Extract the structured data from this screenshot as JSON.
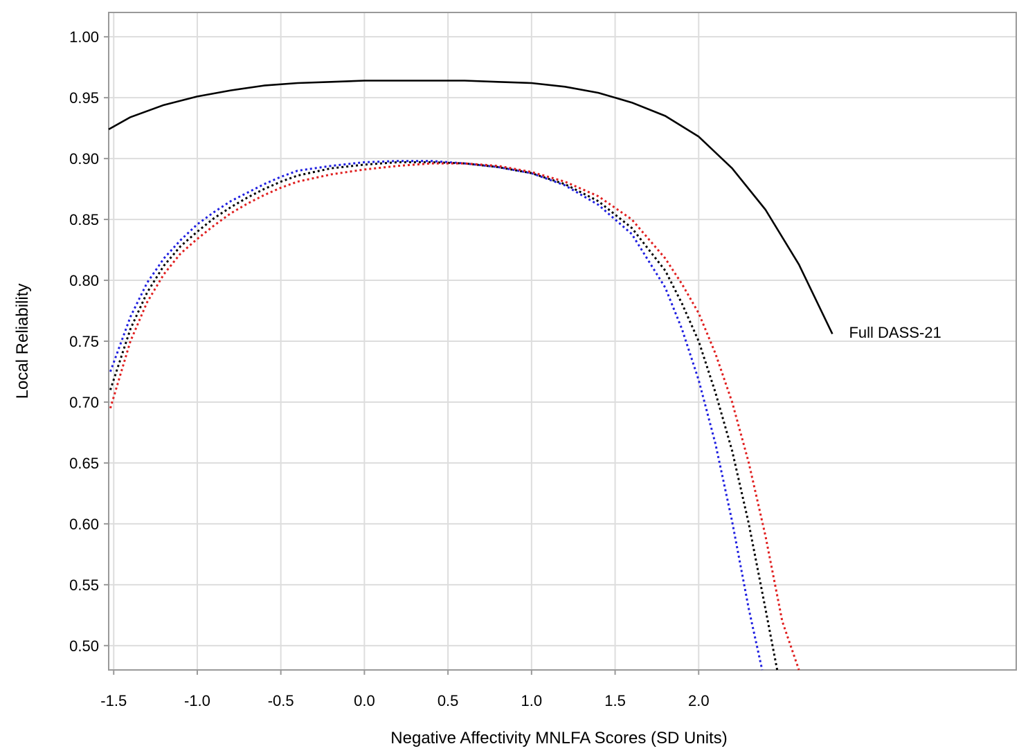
{
  "chart_data": {
    "type": "line",
    "title": "",
    "xlabel": "Negative Affectivity MNLFA Scores (SD Units)",
    "ylabel": "Local Reliability",
    "xlim": [
      -1.53,
      3.9
    ],
    "ylim": [
      0.48,
      1.02
    ],
    "x_ticks": [
      -1.5,
      -1.0,
      -0.5,
      0.0,
      0.5,
      1.0,
      1.5,
      2.0
    ],
    "x_tick_labels": [
      "-1.5",
      "-1.0",
      "-0.5",
      "0.0",
      "0.5",
      "1.0",
      "1.5",
      "2.0"
    ],
    "y_ticks": [
      0.5,
      0.55,
      0.6,
      0.65,
      0.7,
      0.75,
      0.8,
      0.85,
      0.9,
      0.95,
      1.0
    ],
    "y_tick_labels": [
      "0.50",
      "0.55",
      "0.60",
      "0.65",
      "0.70",
      "0.75",
      "0.80",
      "0.85",
      "0.90",
      "0.95",
      "1.00"
    ],
    "grid": true,
    "legend": "none",
    "colors": {
      "frame": "#999999",
      "grid": "#dddddd",
      "black": "#000000",
      "blue": "#1f1fe0",
      "red": "#e01f1f"
    },
    "annotations": [
      {
        "text": "Full DASS-21",
        "x": 2.85,
        "y": 0.755
      }
    ],
    "series": [
      {
        "name": "Full DASS-21",
        "color": "black",
        "style": "solid",
        "x": [
          -1.53,
          -1.4,
          -1.2,
          -1.0,
          -0.8,
          -0.6,
          -0.4,
          -0.2,
          0.0,
          0.2,
          0.4,
          0.6,
          0.8,
          1.0,
          1.2,
          1.4,
          1.6,
          1.8,
          2.0,
          2.2,
          2.4,
          2.6,
          2.8
        ],
        "y": [
          0.924,
          0.934,
          0.944,
          0.951,
          0.956,
          0.96,
          0.962,
          0.963,
          0.964,
          0.964,
          0.964,
          0.964,
          0.963,
          0.962,
          0.959,
          0.954,
          0.946,
          0.935,
          0.918,
          0.892,
          0.858,
          0.813,
          0.756
        ]
      },
      {
        "color": "blue",
        "style": "dotted",
        "x": [
          -1.52,
          -1.4,
          -1.3,
          -1.2,
          -1.1,
          -1.0,
          -0.9,
          -0.8,
          -0.7,
          -0.6,
          -0.5,
          -0.4,
          -0.2,
          0.0,
          0.2,
          0.4,
          0.6,
          0.8,
          1.0,
          1.2,
          1.4,
          1.6,
          1.8,
          1.9,
          2.0,
          2.1,
          2.2,
          2.3,
          2.38
        ],
        "y": [
          0.725,
          0.77,
          0.798,
          0.818,
          0.833,
          0.846,
          0.856,
          0.865,
          0.872,
          0.879,
          0.885,
          0.89,
          0.894,
          0.897,
          0.898,
          0.898,
          0.896,
          0.893,
          0.888,
          0.878,
          0.862,
          0.838,
          0.794,
          0.76,
          0.718,
          0.666,
          0.602,
          0.53,
          0.48
        ]
      },
      {
        "color": "black",
        "style": "dotted",
        "x": [
          -1.52,
          -1.4,
          -1.3,
          -1.2,
          -1.1,
          -1.0,
          -0.9,
          -0.8,
          -0.7,
          -0.6,
          -0.5,
          -0.4,
          -0.2,
          0.0,
          0.2,
          0.4,
          0.6,
          0.8,
          1.0,
          1.2,
          1.4,
          1.6,
          1.8,
          1.9,
          2.0,
          2.1,
          2.2,
          2.3,
          2.4,
          2.47
        ],
        "y": [
          0.71,
          0.76,
          0.79,
          0.812,
          0.828,
          0.84,
          0.851,
          0.86,
          0.868,
          0.875,
          0.881,
          0.886,
          0.892,
          0.895,
          0.897,
          0.897,
          0.896,
          0.893,
          0.888,
          0.879,
          0.865,
          0.843,
          0.808,
          0.781,
          0.75,
          0.708,
          0.66,
          0.6,
          0.53,
          0.48
        ]
      },
      {
        "color": "red",
        "style": "dotted",
        "x": [
          -1.52,
          -1.4,
          -1.3,
          -1.2,
          -1.1,
          -1.0,
          -0.9,
          -0.8,
          -0.7,
          -0.6,
          -0.5,
          -0.4,
          -0.2,
          0.0,
          0.2,
          0.4,
          0.6,
          0.8,
          1.0,
          1.2,
          1.4,
          1.6,
          1.8,
          1.9,
          2.0,
          2.1,
          2.2,
          2.3,
          2.4,
          2.5,
          2.6
        ],
        "y": [
          0.695,
          0.75,
          0.782,
          0.805,
          0.822,
          0.834,
          0.845,
          0.855,
          0.863,
          0.87,
          0.876,
          0.881,
          0.887,
          0.891,
          0.894,
          0.896,
          0.896,
          0.894,
          0.889,
          0.881,
          0.869,
          0.85,
          0.818,
          0.797,
          0.773,
          0.74,
          0.7,
          0.65,
          0.59,
          0.52,
          0.48
        ]
      }
    ]
  }
}
